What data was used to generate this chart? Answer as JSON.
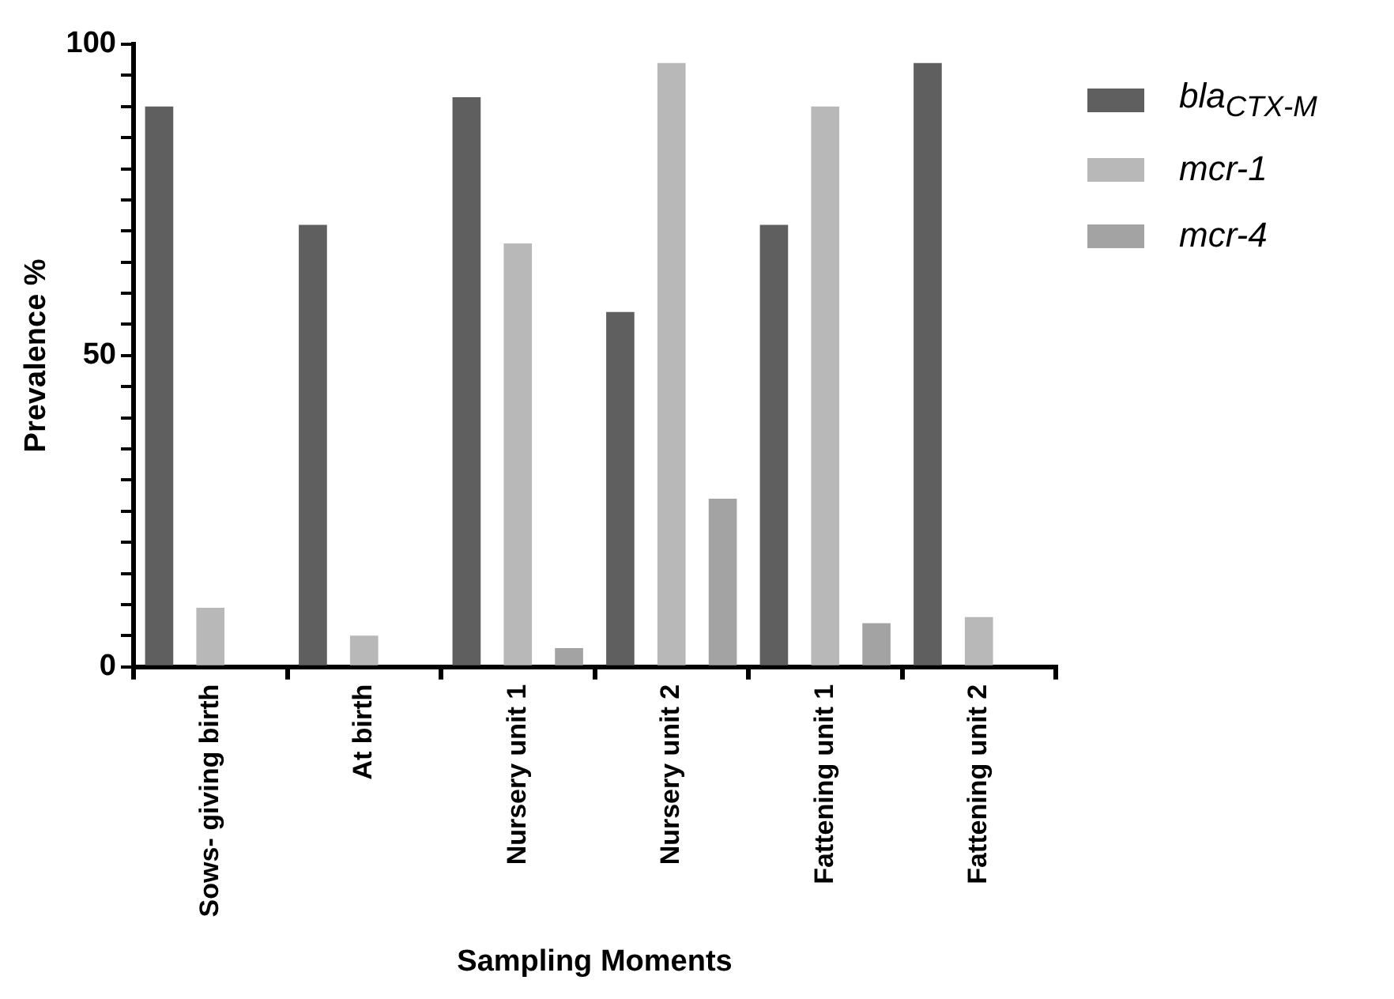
{
  "chart_data": {
    "type": "bar",
    "xlabel": "Sampling Moments",
    "ylabel": "Prevalence %",
    "categories": [
      "Sows- giving birth",
      "At birth",
      "Nursery unit 1",
      "Nursery unit 2",
      "Fattening unit 1",
      "Fattening unit 2"
    ],
    "series": [
      {
        "name": "bla$_{CTX-M}$",
        "color": "#5f5f5f",
        "values": [
          90,
          71,
          91.5,
          57,
          71,
          97
        ]
      },
      {
        "name": "mcr-1",
        "color": "#b8b8b8",
        "values": [
          9.5,
          5,
          68,
          97,
          90,
          8
        ]
      },
      {
        "name": "mcr-4",
        "color": "#a3a3a3",
        "values": [
          0,
          0,
          3,
          27,
          7,
          0
        ]
      }
    ],
    "ylim": [
      0,
      100
    ],
    "yticks": [
      0,
      {
        "value": 5,
        "label": null
      },
      {
        "value": 10,
        "label": null
      },
      {
        "value": 15,
        "label": null
      },
      {
        "value": 20,
        "label": null
      },
      {
        "value": 25,
        "label": null
      },
      {
        "value": 30,
        "label": null
      },
      {
        "value": 35,
        "label": null
      },
      {
        "value": 40,
        "label": null
      },
      {
        "value": 45,
        "label": null
      },
      50,
      {
        "value": 55,
        "label": null
      },
      {
        "value": 60,
        "label": null
      },
      {
        "value": 65,
        "label": null
      },
      {
        "value": 70,
        "label": null
      },
      {
        "value": 75,
        "label": null
      },
      {
        "value": 80,
        "label": null
      },
      {
        "value": 85,
        "label": null
      },
      {
        "value": 90,
        "label": null
      },
      {
        "value": 95,
        "label": null
      },
      100
    ],
    "grid": false,
    "legend": "top right"
  }
}
